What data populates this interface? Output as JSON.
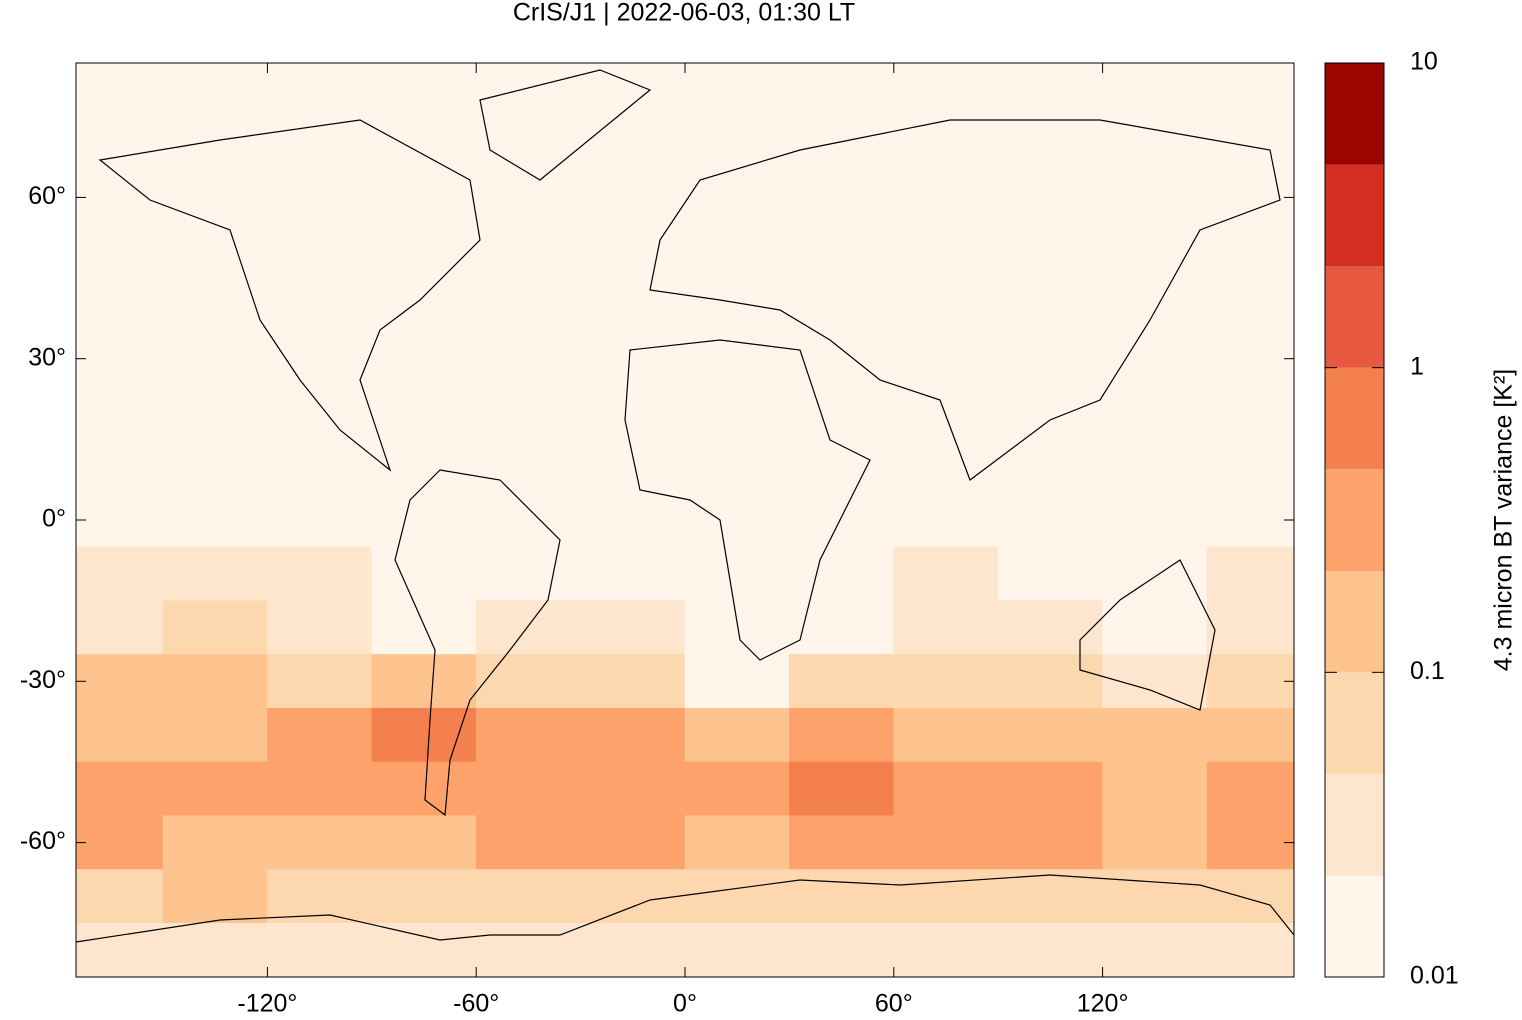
{
  "chart_data": {
    "type": "heatmap",
    "title": "CrIS/J1 | 2022-06-03, 01:30 LT",
    "xlim": [
      -175,
      175
    ],
    "ylim": [
      -85,
      85
    ],
    "xticks": [
      {
        "value": -120,
        "label": "-120°"
      },
      {
        "value": -60,
        "label": "-60°"
      },
      {
        "value": 0,
        "label": "0°"
      },
      {
        "value": 60,
        "label": "60°"
      },
      {
        "value": 120,
        "label": "120°"
      }
    ],
    "yticks": [
      {
        "value": 60,
        "label": "60°"
      },
      {
        "value": 30,
        "label": "30°"
      },
      {
        "value": 0,
        "label": "0°"
      },
      {
        "value": -30,
        "label": "-30°"
      },
      {
        "value": -60,
        "label": "-60°"
      }
    ],
    "colorbar": {
      "label": "4.3 micron BT variance [K²]",
      "log_scale": true,
      "lim": [
        0.01,
        10
      ],
      "ticks": [
        10,
        1,
        0.1,
        0.01
      ],
      "levels": [
        0.01,
        0.0215,
        0.0464,
        0.1,
        0.215,
        0.464,
        1,
        2.15,
        4.64,
        10
      ],
      "colors": [
        "#fff5eb",
        "#fee6ce",
        "#fdd7ae",
        "#fdc48f",
        "#fda26b",
        "#f4804f",
        "#e75840",
        "#d32f21",
        "#9a0500"
      ]
    },
    "field": {
      "lat": [
        80,
        70,
        60,
        50,
        40,
        30,
        20,
        10,
        0,
        -10,
        -20,
        -30,
        -40,
        -50,
        -60,
        -70,
        -80
      ],
      "lon": [
        -165,
        -135,
        -105,
        -75,
        -45,
        -15,
        15,
        45,
        75,
        105,
        135,
        165
      ],
      "values": [
        [
          0.012,
          0.012,
          0.012,
          0.012,
          0.012,
          0.012,
          0.012,
          0.012,
          0.012,
          0.012,
          0.012,
          0.012
        ],
        [
          0.012,
          0.012,
          0.012,
          0.012,
          0.012,
          0.012,
          0.012,
          0.012,
          0.012,
          0.012,
          0.012,
          0.012
        ],
        [
          0.012,
          0.012,
          0.012,
          0.012,
          0.012,
          0.012,
          0.012,
          0.012,
          0.012,
          0.012,
          0.012,
          0.012
        ],
        [
          0.015,
          0.015,
          0.012,
          0.012,
          0.015,
          0.015,
          0.012,
          0.012,
          0.012,
          0.012,
          0.015,
          0.015
        ],
        [
          0.018,
          0.018,
          0.015,
          0.015,
          0.018,
          0.018,
          0.015,
          0.012,
          0.012,
          0.015,
          0.018,
          0.018
        ],
        [
          0.02,
          0.02,
          0.018,
          0.018,
          0.02,
          0.02,
          0.015,
          0.015,
          0.015,
          0.018,
          0.02,
          0.02
        ],
        [
          0.02,
          0.02,
          0.02,
          0.018,
          0.02,
          0.02,
          0.015,
          0.018,
          0.018,
          0.02,
          0.02,
          0.02
        ],
        [
          0.02,
          0.02,
          0.02,
          0.018,
          0.02,
          0.02,
          0.015,
          0.018,
          0.018,
          0.02,
          0.02,
          0.02
        ],
        [
          0.02,
          0.02,
          0.02,
          0.015,
          0.02,
          0.02,
          0.015,
          0.018,
          0.02,
          0.02,
          0.02,
          0.02
        ],
        [
          0.025,
          0.025,
          0.025,
          0.015,
          0.02,
          0.02,
          0.015,
          0.02,
          0.025,
          0.02,
          0.02,
          0.025
        ],
        [
          0.04,
          0.05,
          0.03,
          0.02,
          0.03,
          0.025,
          0.015,
          0.02,
          0.03,
          0.025,
          0.02,
          0.03
        ],
        [
          0.1,
          0.15,
          0.08,
          0.12,
          0.08,
          0.06,
          0.02,
          0.05,
          0.06,
          0.05,
          0.03,
          0.06
        ],
        [
          0.2,
          0.2,
          0.25,
          0.5,
          0.25,
          0.3,
          0.2,
          0.3,
          0.2,
          0.15,
          0.1,
          0.15
        ],
        [
          0.3,
          0.25,
          0.3,
          0.4,
          0.3,
          0.35,
          0.4,
          0.6,
          0.3,
          0.25,
          0.2,
          0.3
        ],
        [
          0.25,
          0.2,
          0.2,
          0.2,
          0.3,
          0.35,
          0.1,
          0.4,
          0.25,
          0.25,
          0.2,
          0.25
        ],
        [
          0.08,
          0.1,
          0.06,
          0.08,
          0.06,
          0.05,
          0.05,
          0.08,
          0.08,
          0.06,
          0.05,
          0.08
        ],
        [
          0.03,
          0.04,
          0.03,
          0.03,
          0.03,
          0.03,
          0.03,
          0.03,
          0.03,
          0.03,
          0.03,
          0.03
        ]
      ]
    }
  }
}
